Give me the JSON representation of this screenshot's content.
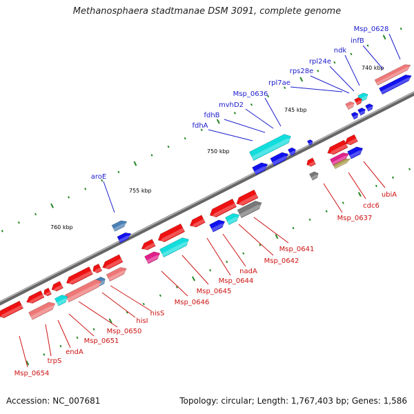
{
  "title": "Methanosphaera stadtmanae DSM 3091, complete genome",
  "footer": {
    "accession": "Accession: NC_007681",
    "topology": "Topology: circular; Length: 1,767,403 bp; Genes: 1,586"
  },
  "scale_labels": [
    "740 kbp",
    "745 kbp",
    "750 kbp",
    "755 kbp",
    "760 kbp"
  ],
  "colors": {
    "forward_label": "#1a1acc",
    "reverse_label": "#cc1111",
    "red_gene": "#ee1111",
    "blue_gene": "#1010ee",
    "cyan_gene": "#11dddd",
    "pink_gene": "#ee7777",
    "steel_gene": "#4a7fb5",
    "gray_gene": "#777777",
    "magenta_gene": "#e0208a",
    "olive_gene": "#b0a050",
    "backbone": "#888888",
    "tick_green": "#2a8a2a"
  },
  "gene_labels_top": [
    "Msp_0628",
    "infB",
    "ndk",
    "rpl24e",
    "rps28e",
    "rpl7ae",
    "Msp_0636",
    "mvhD2",
    "fdhB",
    "fdhA",
    "aroE"
  ],
  "gene_labels_bottom": [
    "ubiA",
    "cdc6",
    "Msp_0637",
    "Msp_0641",
    "Msp_0642",
    "nadA",
    "Msp_0644",
    "Msp_0645",
    "Msp_0646",
    "hisS",
    "hisI",
    "Msp_0650",
    "Msp_0651",
    "endA",
    "trpS",
    "Msp_0654"
  ]
}
